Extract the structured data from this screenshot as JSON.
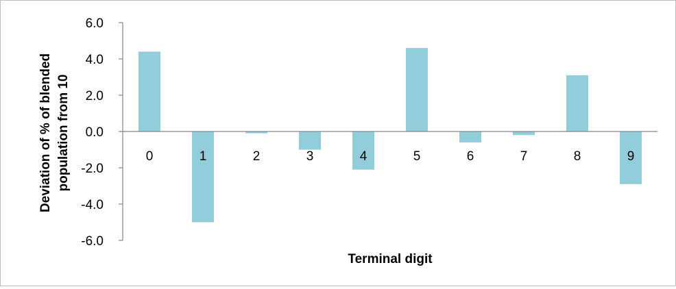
{
  "chart_data": {
    "type": "bar",
    "categories": [
      "0",
      "1",
      "2",
      "3",
      "4",
      "5",
      "6",
      "7",
      "8",
      "9"
    ],
    "values": [
      4.4,
      -5.0,
      -0.1,
      -1.0,
      -2.1,
      4.6,
      -0.6,
      -0.2,
      3.1,
      -2.9
    ],
    "xlabel": "Terminal digit",
    "ylabel": "Deviation of % of blended population from 10",
    "ylabel_lines": [
      "Deviation of % of blended",
      "population from 10"
    ],
    "ylim": [
      -6.0,
      6.0
    ],
    "yticks": [
      "-6.0",
      "-4.0",
      "-2.0",
      "0.0",
      "2.0",
      "4.0",
      "6.0"
    ],
    "ytick_values": [
      -6,
      -4,
      -2,
      0,
      2,
      4,
      6
    ],
    "grid": false,
    "bar_color": "#92cddc",
    "axis_color": "#868686"
  }
}
